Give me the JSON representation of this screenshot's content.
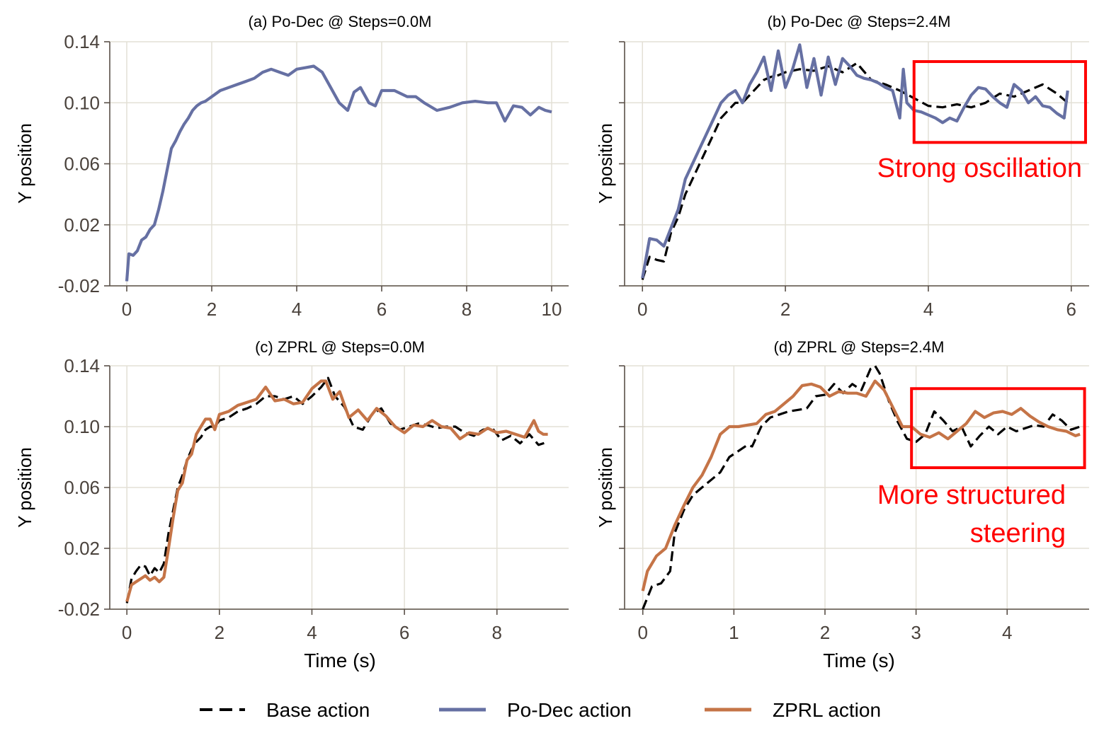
{
  "legend": {
    "items": [
      {
        "label": "Base action",
        "color": "#000000",
        "dash": true
      },
      {
        "label": "Po-Dec action",
        "color": "#6670a3",
        "dash": false
      },
      {
        "label": "ZPRL action",
        "color": "#c57447",
        "dash": false
      }
    ]
  },
  "chart_data": [
    {
      "type": "line",
      "title": "(a) Po-Dec @ Steps=0.0M",
      "xlabel": "",
      "ylabel": "Y position",
      "xlim": [
        -0.4,
        10.4
      ],
      "ylim": [
        -0.02,
        0.14
      ],
      "xticks": [
        0,
        2,
        4,
        6,
        8,
        10
      ],
      "xtick_labels": [
        "0",
        "2",
        "4",
        "6",
        "8",
        "10"
      ],
      "yticks": [
        -0.02,
        0.02,
        0.06,
        0.1,
        0.14
      ],
      "ytick_labels": [
        "-0.02",
        "0.02",
        "0.06",
        "0.10",
        "0.14"
      ],
      "show_yticklabels": true,
      "grid": true,
      "series": [
        {
          "key": "podec",
          "color": "#6670a3",
          "dashed": false,
          "x": [
            0,
            0.05,
            0.15,
            0.25,
            0.35,
            0.45,
            0.55,
            0.65,
            0.75,
            0.85,
            0.95,
            1.05,
            1.15,
            1.25,
            1.35,
            1.45,
            1.55,
            1.65,
            1.75,
            1.85,
            1.95,
            2.05,
            2.2,
            2.4,
            2.6,
            2.8,
            3.0,
            3.2,
            3.4,
            3.6,
            3.8,
            4.0,
            4.2,
            4.4,
            4.6,
            4.8,
            5.0,
            5.2,
            5.35,
            5.5,
            5.7,
            5.85,
            6.0,
            6.3,
            6.6,
            6.8,
            7.0,
            7.3,
            7.6,
            7.9,
            8.2,
            8.5,
            8.7,
            8.9,
            9.1,
            9.3,
            9.5,
            9.7,
            9.85,
            10.0
          ],
          "y": [
            -0.017,
            0.001,
            0.0,
            0.003,
            0.01,
            0.012,
            0.017,
            0.02,
            0.03,
            0.042,
            0.056,
            0.07,
            0.075,
            0.081,
            0.086,
            0.09,
            0.095,
            0.098,
            0.1,
            0.101,
            0.103,
            0.105,
            0.108,
            0.11,
            0.112,
            0.114,
            0.116,
            0.12,
            0.122,
            0.12,
            0.118,
            0.122,
            0.123,
            0.124,
            0.12,
            0.11,
            0.1,
            0.095,
            0.107,
            0.11,
            0.1,
            0.098,
            0.108,
            0.108,
            0.104,
            0.104,
            0.1,
            0.095,
            0.097,
            0.1,
            0.101,
            0.1,
            0.1,
            0.088,
            0.098,
            0.097,
            0.092,
            0.097,
            0.095,
            0.094
          ]
        }
      ]
    },
    {
      "type": "line",
      "title": "(b) Po-Dec @ Steps=2.4M",
      "xlabel": "",
      "ylabel": "Y position",
      "xlim": [
        -0.25,
        6.25
      ],
      "ylim": [
        -0.02,
        0.14
      ],
      "xticks": [
        0,
        2,
        4,
        6
      ],
      "xtick_labels": [
        "0",
        "2",
        "4",
        "6"
      ],
      "yticks": [
        -0.02,
        0.02,
        0.06,
        0.1,
        0.14
      ],
      "ytick_labels": [
        "-0.02",
        "0.02",
        "0.06",
        "0.10",
        "0.14"
      ],
      "show_yticklabels": false,
      "grid": true,
      "annotation": {
        "text": "Strong oscillation",
        "lines": [
          "Strong oscillation"
        ],
        "box": {
          "x0": 3.8,
          "x1": 6.2,
          "y0": 0.074,
          "y1": 0.127
        }
      },
      "series": [
        {
          "key": "base",
          "color": "#000000",
          "dashed": true,
          "x": [
            0,
            0.1,
            0.2,
            0.3,
            0.4,
            0.5,
            0.6,
            0.7,
            0.8,
            0.9,
            1.0,
            1.1,
            1.2,
            1.3,
            1.4,
            1.5,
            1.6,
            1.7,
            1.8,
            1.9,
            2.0,
            2.2,
            2.4,
            2.6,
            2.8,
            3.0,
            3.2,
            3.4,
            3.6,
            3.8,
            4.0,
            4.2,
            4.4,
            4.6,
            4.8,
            5.0,
            5.2,
            5.4,
            5.6,
            5.8,
            5.95
          ],
          "y": [
            -0.016,
            -0.001,
            -0.003,
            -0.004,
            0.015,
            0.025,
            0.04,
            0.05,
            0.06,
            0.07,
            0.08,
            0.09,
            0.095,
            0.1,
            0.1,
            0.105,
            0.11,
            0.115,
            0.117,
            0.118,
            0.12,
            0.122,
            0.121,
            0.124,
            0.12,
            0.126,
            0.115,
            0.112,
            0.108,
            0.103,
            0.098,
            0.097,
            0.099,
            0.097,
            0.1,
            0.106,
            0.104,
            0.108,
            0.112,
            0.106,
            0.1
          ]
        },
        {
          "key": "podec",
          "color": "#6670a3",
          "dashed": false,
          "x": [
            0,
            0.1,
            0.2,
            0.3,
            0.4,
            0.5,
            0.6,
            0.7,
            0.8,
            0.9,
            1.0,
            1.1,
            1.2,
            1.3,
            1.4,
            1.5,
            1.6,
            1.7,
            1.8,
            1.9,
            2.0,
            2.1,
            2.2,
            2.3,
            2.4,
            2.5,
            2.6,
            2.7,
            2.8,
            2.9,
            3.0,
            3.1,
            3.2,
            3.3,
            3.4,
            3.5,
            3.6,
            3.65,
            3.7,
            3.8,
            3.9,
            4.0,
            4.1,
            4.2,
            4.3,
            4.4,
            4.5,
            4.6,
            4.7,
            4.8,
            4.9,
            5.0,
            5.1,
            5.2,
            5.3,
            5.4,
            5.5,
            5.6,
            5.7,
            5.8,
            5.9,
            5.95
          ],
          "y": [
            -0.015,
            0.011,
            0.01,
            0.006,
            0.018,
            0.03,
            0.05,
            0.06,
            0.07,
            0.08,
            0.09,
            0.1,
            0.105,
            0.108,
            0.1,
            0.112,
            0.12,
            0.13,
            0.108,
            0.134,
            0.11,
            0.122,
            0.138,
            0.11,
            0.129,
            0.105,
            0.13,
            0.112,
            0.129,
            0.124,
            0.118,
            0.116,
            0.115,
            0.113,
            0.11,
            0.108,
            0.09,
            0.122,
            0.1,
            0.095,
            0.094,
            0.092,
            0.09,
            0.087,
            0.09,
            0.088,
            0.097,
            0.105,
            0.11,
            0.109,
            0.104,
            0.1,
            0.097,
            0.112,
            0.108,
            0.1,
            0.104,
            0.098,
            0.097,
            0.093,
            0.09,
            0.108
          ]
        }
      ]
    },
    {
      "type": "line",
      "title": "(c) ZPRL @ Steps=0.0M",
      "xlabel": "Time (s)",
      "ylabel": "Y position",
      "xlim": [
        -0.37,
        9.55
      ],
      "ylim": [
        -0.02,
        0.14
      ],
      "xticks": [
        0,
        2,
        4,
        6,
        8
      ],
      "xtick_labels": [
        "0",
        "2",
        "4",
        "6",
        "8"
      ],
      "yticks": [
        -0.02,
        0.02,
        0.06,
        0.1,
        0.14
      ],
      "ytick_labels": [
        "-0.02",
        "0.02",
        "0.06",
        "0.10",
        "0.14"
      ],
      "show_yticklabels": true,
      "grid": true,
      "series": [
        {
          "key": "base",
          "color": "#000000",
          "dashed": true,
          "x": [
            0,
            0.1,
            0.2,
            0.3,
            0.4,
            0.5,
            0.6,
            0.7,
            0.8,
            0.9,
            1.0,
            1.1,
            1.2,
            1.3,
            1.4,
            1.5,
            1.6,
            1.7,
            1.8,
            1.9,
            2.0,
            2.2,
            2.4,
            2.6,
            2.8,
            3.0,
            3.2,
            3.4,
            3.6,
            3.8,
            4.0,
            4.2,
            4.35,
            4.5,
            4.7,
            4.9,
            5.1,
            5.3,
            5.5,
            5.7,
            5.9,
            6.1,
            6.3,
            6.5,
            6.7,
            6.9,
            7.1,
            7.3,
            7.5,
            7.7,
            7.9,
            8.1,
            8.3,
            8.5,
            8.7,
            8.9,
            9.1
          ],
          "y": [
            -0.016,
            0.0,
            0.005,
            0.009,
            0.008,
            0.002,
            0.007,
            0.004,
            0.01,
            0.03,
            0.045,
            0.06,
            0.068,
            0.078,
            0.085,
            0.09,
            0.093,
            0.098,
            0.1,
            0.1,
            0.104,
            0.106,
            0.11,
            0.112,
            0.115,
            0.12,
            0.12,
            0.118,
            0.12,
            0.115,
            0.12,
            0.126,
            0.132,
            0.12,
            0.113,
            0.1,
            0.098,
            0.108,
            0.112,
            0.102,
            0.098,
            0.1,
            0.102,
            0.101,
            0.099,
            0.1,
            0.1,
            0.096,
            0.094,
            0.098,
            0.099,
            0.091,
            0.094,
            0.089,
            0.095,
            0.088,
            0.09
          ]
        },
        {
          "key": "zprl",
          "color": "#c57447",
          "dashed": false,
          "x": [
            0,
            0.1,
            0.2,
            0.3,
            0.4,
            0.5,
            0.6,
            0.7,
            0.8,
            0.9,
            1.0,
            1.1,
            1.2,
            1.3,
            1.4,
            1.5,
            1.6,
            1.7,
            1.8,
            1.9,
            2.0,
            2.2,
            2.4,
            2.6,
            2.8,
            3.0,
            3.2,
            3.4,
            3.6,
            3.8,
            4.0,
            4.2,
            4.3,
            4.45,
            4.6,
            4.8,
            5.0,
            5.2,
            5.4,
            5.6,
            5.8,
            6.0,
            6.2,
            6.4,
            6.6,
            6.8,
            7.0,
            7.2,
            7.4,
            7.6,
            7.8,
            8.0,
            8.2,
            8.4,
            8.6,
            8.8,
            8.9,
            9.0,
            9.1
          ],
          "y": [
            -0.015,
            -0.004,
            -0.002,
            0.0,
            0.002,
            -0.001,
            0.001,
            -0.002,
            0.001,
            0.02,
            0.04,
            0.058,
            0.063,
            0.078,
            0.082,
            0.095,
            0.1,
            0.105,
            0.105,
            0.098,
            0.108,
            0.11,
            0.114,
            0.116,
            0.118,
            0.126,
            0.117,
            0.118,
            0.115,
            0.116,
            0.125,
            0.13,
            0.13,
            0.118,
            0.123,
            0.106,
            0.111,
            0.104,
            0.112,
            0.107,
            0.1,
            0.096,
            0.101,
            0.1,
            0.104,
            0.1,
            0.099,
            0.092,
            0.096,
            0.095,
            0.099,
            0.096,
            0.097,
            0.095,
            0.093,
            0.104,
            0.097,
            0.095,
            0.095
          ]
        }
      ]
    },
    {
      "type": "line",
      "title": "(d) ZPRL @ Steps=2.4M",
      "xlabel": "Time (s)",
      "ylabel": "Y position",
      "xlim": [
        -0.2,
        4.9
      ],
      "ylim": [
        -0.02,
        0.14
      ],
      "xticks": [
        0,
        1,
        2,
        3,
        4
      ],
      "xtick_labels": [
        "0",
        "1",
        "2",
        "3",
        "4"
      ],
      "yticks": [
        -0.02,
        0.02,
        0.06,
        0.1,
        0.14
      ],
      "ytick_labels": [
        "-0.02",
        "0.02",
        "0.06",
        "0.10",
        "0.14"
      ],
      "show_yticklabels": false,
      "grid": true,
      "annotation": {
        "text": "More structured steering",
        "lines": [
          "More structured",
          "steering"
        ],
        "box": {
          "x0": 2.95,
          "x1": 4.85,
          "y0": 0.073,
          "y1": 0.125
        }
      },
      "series": [
        {
          "key": "base",
          "color": "#000000",
          "dashed": true,
          "x": [
            0,
            0.1,
            0.2,
            0.3,
            0.35,
            0.45,
            0.55,
            0.65,
            0.75,
            0.85,
            0.95,
            1.05,
            1.15,
            1.2,
            1.3,
            1.4,
            1.5,
            1.6,
            1.7,
            1.8,
            1.9,
            2.0,
            2.1,
            2.2,
            2.3,
            2.4,
            2.5,
            2.55,
            2.6,
            2.7,
            2.8,
            2.9,
            3.0,
            3.1,
            3.2,
            3.3,
            3.4,
            3.5,
            3.6,
            3.7,
            3.8,
            3.9,
            4.0,
            4.1,
            4.2,
            4.3,
            4.4,
            4.5,
            4.6,
            4.7,
            4.8
          ],
          "y": [
            -0.02,
            -0.005,
            -0.003,
            0.005,
            0.03,
            0.045,
            0.055,
            0.06,
            0.065,
            0.07,
            0.08,
            0.084,
            0.088,
            0.087,
            0.1,
            0.106,
            0.108,
            0.11,
            0.111,
            0.112,
            0.12,
            0.121,
            0.128,
            0.122,
            0.128,
            0.124,
            0.138,
            0.14,
            0.135,
            0.117,
            0.103,
            0.092,
            0.09,
            0.095,
            0.11,
            0.104,
            0.097,
            0.1,
            0.087,
            0.094,
            0.1,
            0.095,
            0.1,
            0.097,
            0.099,
            0.101,
            0.1,
            0.108,
            0.104,
            0.098,
            0.1
          ]
        },
        {
          "key": "zprl",
          "color": "#c57447",
          "dashed": false,
          "x": [
            0,
            0.05,
            0.15,
            0.25,
            0.35,
            0.45,
            0.55,
            0.65,
            0.75,
            0.85,
            0.95,
            1.05,
            1.15,
            1.25,
            1.35,
            1.45,
            1.55,
            1.65,
            1.75,
            1.85,
            1.95,
            2.05,
            2.15,
            2.25,
            2.35,
            2.45,
            2.55,
            2.65,
            2.75,
            2.85,
            2.95,
            3.05,
            3.15,
            3.25,
            3.35,
            3.45,
            3.55,
            3.65,
            3.75,
            3.85,
            3.95,
            4.05,
            4.15,
            4.25,
            4.35,
            4.45,
            4.55,
            4.65,
            4.75,
            4.8
          ],
          "y": [
            -0.008,
            0.005,
            0.015,
            0.02,
            0.035,
            0.048,
            0.06,
            0.068,
            0.08,
            0.095,
            0.1,
            0.1,
            0.101,
            0.102,
            0.108,
            0.11,
            0.115,
            0.12,
            0.127,
            0.128,
            0.126,
            0.12,
            0.123,
            0.122,
            0.122,
            0.12,
            0.13,
            0.124,
            0.112,
            0.1,
            0.1,
            0.095,
            0.093,
            0.096,
            0.092,
            0.097,
            0.102,
            0.11,
            0.106,
            0.109,
            0.11,
            0.108,
            0.112,
            0.107,
            0.103,
            0.1,
            0.098,
            0.097,
            0.094,
            0.095
          ]
        }
      ]
    }
  ]
}
